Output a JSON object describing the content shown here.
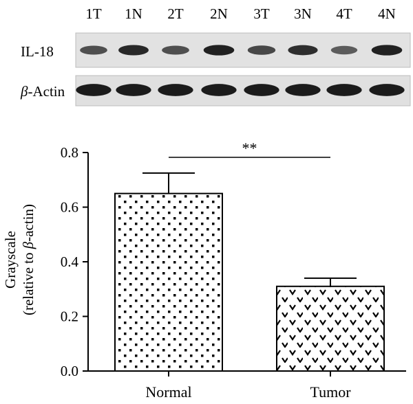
{
  "blot": {
    "lanes": [
      "1T",
      "1N",
      "2T",
      "2N",
      "3T",
      "3N",
      "4T",
      "4N"
    ],
    "rows": [
      {
        "label": "IL-18",
        "intensity": [
          0.55,
          0.85,
          0.55,
          0.9,
          0.6,
          0.8,
          0.45,
          0.9
        ]
      },
      {
        "label_italic": "β",
        "label_rest": "-Actin",
        "intensity": [
          0.95,
          0.95,
          0.95,
          0.95,
          0.95,
          0.95,
          0.95,
          0.95
        ]
      }
    ]
  },
  "chart_data": {
    "type": "bar",
    "categories": [
      "Normal",
      "Tumor"
    ],
    "values": [
      0.65,
      0.31
    ],
    "errors": [
      0.075,
      0.03
    ],
    "ylim": [
      0.0,
      0.8
    ],
    "yticks": [
      "0.0",
      "0.2",
      "0.4",
      "0.6",
      "0.8"
    ],
    "ylabel_line1": "Grayscale",
    "ylabel_line2_pre": "(relative to ",
    "ylabel_line2_italic": "β",
    "ylabel_line2_post": "-actin)",
    "significance": "**",
    "patterns": [
      "dots",
      "chevrons"
    ]
  }
}
